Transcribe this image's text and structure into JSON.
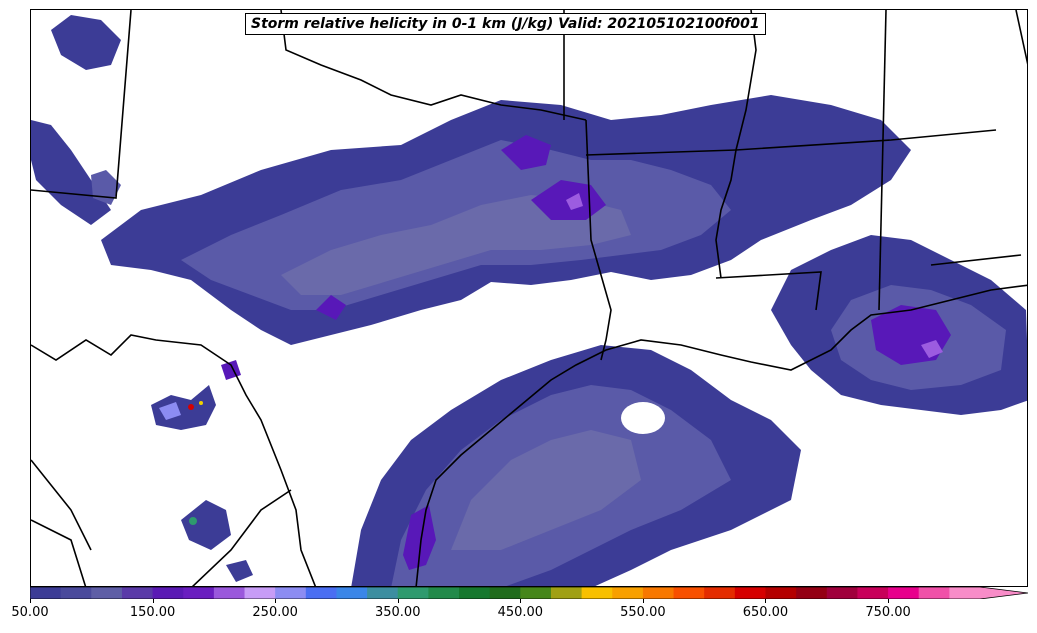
{
  "title": "Storm relative helicity in 0-1 km (J/kg) Valid: 202105102100f001",
  "colorbar": {
    "min": 50,
    "step": 25,
    "max": 850,
    "extend": "max",
    "colors": [
      "#3c3c96",
      "#4a4a9c",
      "#5e5ea6",
      "#5a3aa8",
      "#5a1ab4",
      "#6a1ec0",
      "#9a58dc",
      "#c79cf6",
      "#8c8cf2",
      "#4a6ef2",
      "#3a86e8",
      "#3c8ea0",
      "#2e9a6e",
      "#228a4a",
      "#16782e",
      "#206c1c",
      "#46861a",
      "#a0a014",
      "#f8c000",
      "#f8a000",
      "#f87800",
      "#f85000",
      "#e42c00",
      "#d60000",
      "#b40000",
      "#940014",
      "#a0003c",
      "#c8005a",
      "#e8008c",
      "#f050a8",
      "#f88cc8"
    ],
    "tick_labels": [
      "50.00",
      "150.00",
      "250.00",
      "350.00",
      "450.00",
      "550.00",
      "650.00",
      "750.00"
    ]
  },
  "fill_colors": {
    "level_50": "#3c3c96",
    "level_75": "#5a5aa8",
    "level_100": "#6a6aaa",
    "level_150": "#5818b8",
    "level_200": "#9c5ce0",
    "level_250": "#8c8cf2",
    "high_small": "#d60000",
    "high_yellow": "#f0d000",
    "high_green": "#2e9a6e"
  },
  "map_lines": "#000000"
}
